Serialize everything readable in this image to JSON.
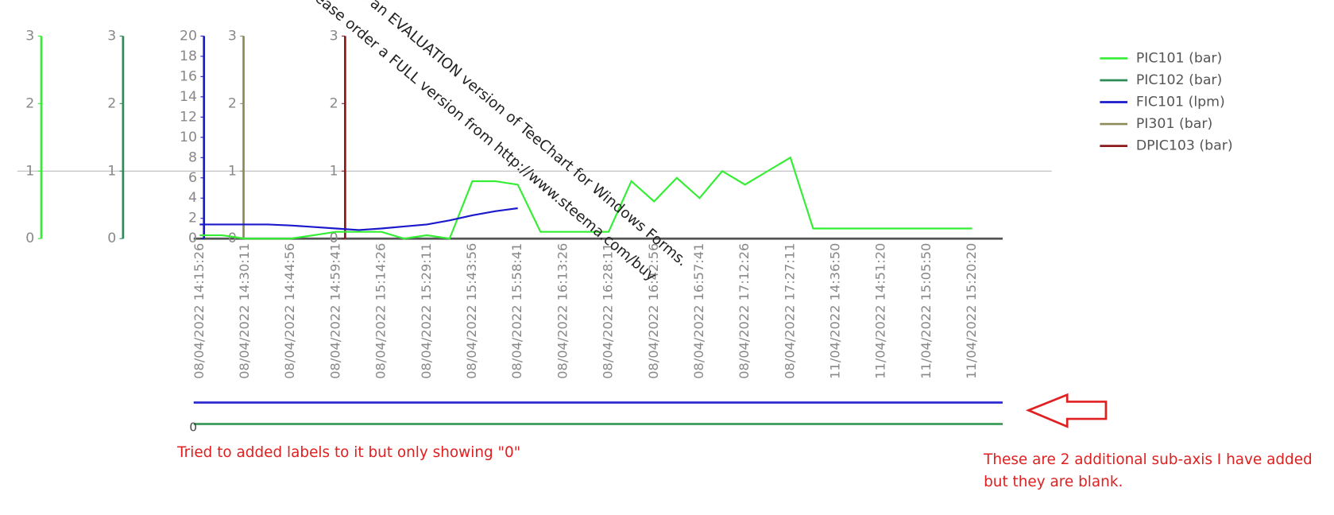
{
  "chart_data": {
    "type": "line",
    "categories": [
      "08/04/2022 14:15:26",
      null,
      "08/04/2022 14:30:11",
      null,
      "08/04/2022 14:44:56",
      null,
      "08/04/2022 14:59:41",
      null,
      "08/04/2022 15:14:26",
      null,
      "08/04/2022 15:29:11",
      null,
      "08/04/2022 15:43:56",
      null,
      "08/04/2022 15:58:41",
      null,
      "08/04/2022 16:13:26",
      null,
      "08/04/2022 16:28:11",
      null,
      "08/04/2022 16:42:56",
      null,
      "08/04/2022 16:57:41",
      null,
      "08/04/2022 17:12:26",
      null,
      "08/04/2022 17:27:11",
      null,
      "11/04/2022 14:36:50",
      null,
      "11/04/2022 14:51:20",
      null,
      "11/04/2022 15:05:50",
      null,
      "11/04/2022 15:20:20"
    ],
    "series": [
      {
        "name": "PIC101 (bar)",
        "color": "#33ee33",
        "ylim": [
          0,
          3
        ],
        "yticks": [
          0,
          1,
          2,
          3
        ],
        "values": [
          0.05,
          0.05,
          0,
          0,
          0,
          0.05,
          0.1,
          0.1,
          0.1,
          0,
          0.05,
          0,
          0.85,
          0.85,
          0.8,
          0.1,
          0.1,
          0.1,
          0.1,
          0.85,
          0.55,
          0.9,
          0.6,
          1.0,
          0.8,
          1.0,
          1.2,
          0.15,
          0.15,
          0.15,
          0.15,
          0.15,
          0.15,
          0.15,
          0.15
        ]
      },
      {
        "name": "PIC102 (bar)",
        "color": "#2e8b57",
        "ylim": [
          0,
          3
        ],
        "yticks": [
          0,
          1,
          2,
          3
        ],
        "values": [
          null,
          null,
          null,
          null,
          null,
          null,
          null,
          null,
          null,
          null,
          null,
          null,
          null,
          null,
          null,
          null,
          null,
          null,
          null,
          null,
          null,
          null,
          null,
          null,
          null,
          null,
          null,
          null,
          null,
          null,
          null,
          null,
          null,
          null,
          null
        ]
      },
      {
        "name": "FIC101 (lpm)",
        "color": "#1a1acc",
        "ylim": [
          0,
          20
        ],
        "yticks": [
          0,
          2,
          4,
          6,
          8,
          10,
          12,
          14,
          16,
          18,
          20
        ],
        "values": [
          1.4,
          1.4,
          1.4,
          1.4,
          1.3,
          1.15,
          1.0,
          0.85,
          1.0,
          1.2,
          1.4,
          1.8,
          2.3,
          2.7,
          3.0,
          null,
          null,
          null,
          null,
          null,
          null,
          null,
          null,
          null,
          null,
          null,
          null,
          null,
          null,
          null,
          null,
          null,
          null,
          null,
          null
        ]
      },
      {
        "name": "PI301 (bar)",
        "color": "#8b8b5a",
        "ylim": [
          0,
          3
        ],
        "yticks": [
          0,
          1,
          2,
          3
        ],
        "values": [
          null,
          null,
          null,
          null,
          null,
          null,
          null,
          null,
          null,
          null,
          null,
          null,
          null,
          null,
          null,
          null,
          null,
          null,
          null,
          null,
          null,
          null,
          null,
          null,
          null,
          null,
          null,
          null,
          null,
          null,
          null,
          null,
          null,
          null,
          null
        ]
      },
      {
        "name": "DPIC103 (bar)",
        "color": "#8b1a1a",
        "ylim": [
          0,
          3
        ],
        "yticks": [
          0,
          1,
          2,
          3
        ],
        "values": [
          null,
          null,
          null,
          null,
          null,
          null,
          null,
          null,
          null,
          null,
          null,
          null,
          null,
          null,
          null,
          null,
          null,
          null,
          null,
          null,
          null,
          null,
          null,
          null,
          null,
          null,
          null,
          null,
          null,
          null,
          null,
          null,
          null,
          null,
          null
        ]
      }
    ],
    "sub_axes": [
      {
        "color": "#2a2ad0"
      },
      {
        "color": "#3a9a5a",
        "yticks": [
          0
        ]
      }
    ],
    "watermark": [
      "o an EVALUATION version of TeeChart for Windows Forms.",
      "ease order a FULL version from http://www.steema.com/buy"
    ],
    "annotations": [
      "Tried to added labels to it but only showing \"0\"",
      "These are 2 additional sub-axis I have added",
      "but they are blank."
    ]
  }
}
